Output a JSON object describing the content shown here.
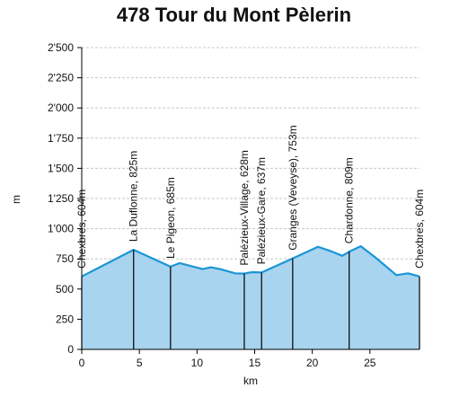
{
  "chart_data": {
    "type": "area",
    "title": "478 Tour du Mont Pèlerin",
    "xlabel": "km",
    "ylabel": "m",
    "xlim": [
      0,
      29.3
    ],
    "ylim": [
      0,
      2500
    ],
    "xticks": [
      0,
      5,
      10,
      15,
      20,
      25
    ],
    "xtick_labels": [
      "0",
      "5",
      "10",
      "15",
      "20",
      "25"
    ],
    "yticks": [
      0,
      250,
      500,
      750,
      1000,
      1250,
      1500,
      1750,
      2000,
      2250,
      2500
    ],
    "ytick_labels": [
      "0",
      "250",
      "500",
      "750",
      "1'000",
      "1'250",
      "1'500",
      "1'750",
      "2'000",
      "2'250",
      "2'500"
    ],
    "grid": true,
    "colors": {
      "fill": "#a8d4ef",
      "line": "#1b95d6",
      "axis": "#000000",
      "grid": "#c8c8c8"
    },
    "profile": {
      "x": [
        0,
        4.5,
        7.7,
        8.5,
        9.5,
        10.5,
        11.2,
        12.0,
        13.3,
        14.1,
        14.8,
        15.6,
        18.3,
        20.5,
        21.7,
        22.6,
        23.2,
        24.2,
        25.5,
        27.3,
        28.3,
        29.3
      ],
      "y": [
        604,
        825,
        685,
        715,
        690,
        665,
        680,
        665,
        630,
        628,
        640,
        637,
        753,
        850,
        810,
        775,
        809,
        855,
        760,
        615,
        630,
        604
      ]
    },
    "waypoints": [
      {
        "x": 0,
        "y": 604,
        "label": "Chexbres, 604m"
      },
      {
        "x": 4.5,
        "y": 825,
        "label": "La Duflonne, 825m"
      },
      {
        "x": 7.7,
        "y": 685,
        "label": "Le Pigeon, 685m"
      },
      {
        "x": 14.1,
        "y": 628,
        "label": "Palézieux-Village, 628m"
      },
      {
        "x": 15.6,
        "y": 637,
        "label": "Palézieux-Gare, 637m"
      },
      {
        "x": 18.3,
        "y": 753,
        "label": "Granges (Veveyse), 753m"
      },
      {
        "x": 23.2,
        "y": 809,
        "label": "Chardonne, 809m"
      },
      {
        "x": 29.3,
        "y": 604,
        "label": "Chexbres, 604m"
      }
    ]
  }
}
